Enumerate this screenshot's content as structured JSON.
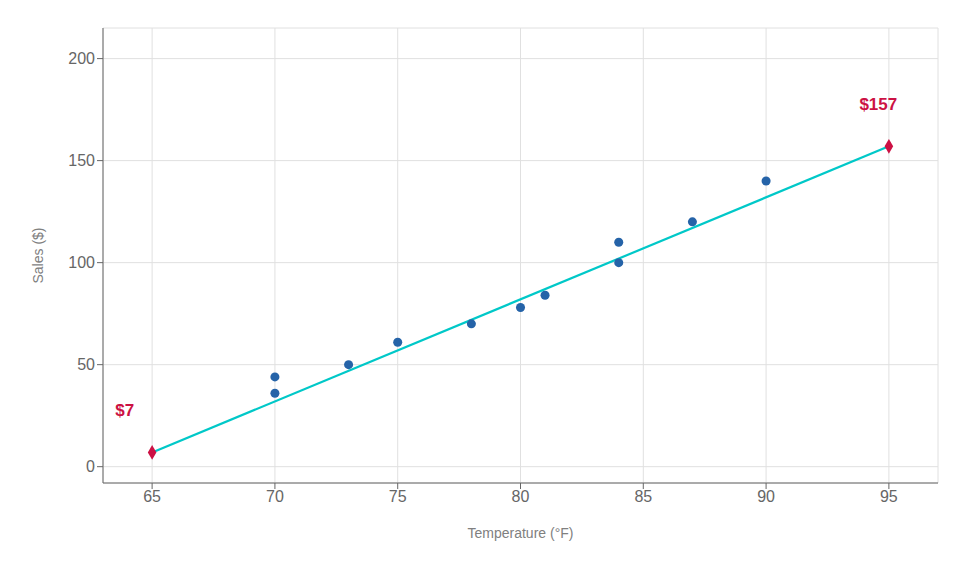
{
  "chart_data": {
    "type": "scatter",
    "x_label": "Temperature (°F)",
    "y_label": "Sales ($)",
    "xlim": [
      63,
      97
    ],
    "ylim": [
      -8,
      215
    ],
    "xticks": [
      65,
      70,
      75,
      80,
      85,
      90,
      95
    ],
    "yticks": [
      0,
      50,
      100,
      150,
      200
    ],
    "grid": true,
    "series": [
      {
        "type": "line",
        "color": "#00c8c8",
        "x": [
          65,
          95
        ],
        "values": [
          7,
          157
        ]
      },
      {
        "type": "scatter",
        "marker": "circle",
        "color": "#2563a8",
        "x": [
          70,
          70,
          73,
          75,
          78,
          80,
          81,
          84,
          84,
          87,
          90
        ],
        "values": [
          36,
          44,
          50,
          61,
          70,
          78,
          84,
          100,
          110,
          120,
          140
        ]
      },
      {
        "type": "scatter",
        "marker": "diamond",
        "color": "#cc1144",
        "x": [
          65,
          95
        ],
        "values": [
          7,
          157
        ]
      }
    ],
    "annotations": [
      {
        "text": "$7",
        "x": 63.5,
        "y": 25,
        "color": "#cc1144"
      },
      {
        "text": "$157",
        "x": 93.8,
        "y": 175,
        "color": "#cc1144"
      }
    ]
  }
}
